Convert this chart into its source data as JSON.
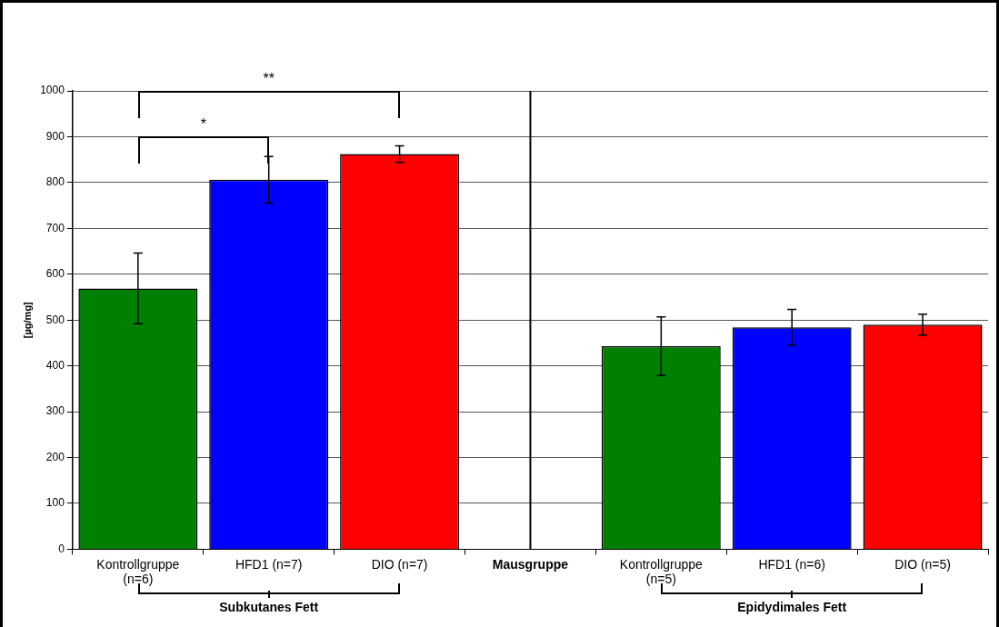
{
  "chart_data": {
    "type": "bar",
    "ylabel": "[µg/mg]",
    "categories": [
      "Kontrollgruppe (n=6)",
      "HFD1 (n=7)",
      "DIO (n=7)",
      "Mausgruppe",
      "Kontrollgruppe (n=5)",
      "HFD1 (n=6)",
      "DIO (n=5)"
    ],
    "values": [
      569,
      806,
      862,
      null,
      443,
      484,
      490
    ],
    "colors": [
      "#008000",
      "#0000ff",
      "#ff0000",
      null,
      "#008000",
      "#0000ff",
      "#ff0000"
    ],
    "errors": [
      77,
      51,
      18,
      null,
      64,
      39,
      23
    ],
    "ylim": [
      0,
      1000
    ],
    "yticks": [
      0,
      100,
      200,
      300,
      400,
      500,
      600,
      700,
      800,
      900,
      1000
    ],
    "grid": "y",
    "legend": false,
    "ref_lines": [
      {
        "axis": "x",
        "value": "Mausgruppe",
        "color": "#000000"
      }
    ],
    "annotations": [
      "*",
      "**",
      "Subkutanes Fett",
      "Epidydimales Fett"
    ]
  }
}
